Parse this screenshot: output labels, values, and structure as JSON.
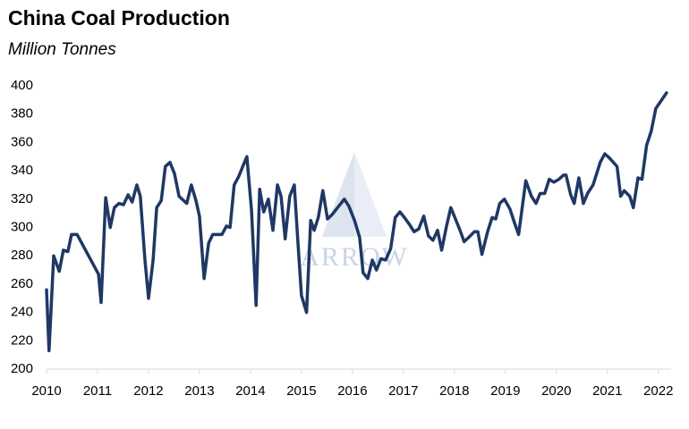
{
  "chart_data": {
    "type": "line",
    "title": "China Coal Production",
    "subtitle": "Million Tonnes",
    "watermark": "ARROW",
    "series": [
      {
        "name": "China Coal Production",
        "color": "#1f3864",
        "x": [
          2010.0,
          2010.05,
          2010.14,
          2010.25,
          2010.33,
          2010.42,
          2010.49,
          2010.6,
          2011.02,
          2011.07,
          2011.16,
          2011.25,
          2011.33,
          2011.42,
          2011.51,
          2011.6,
          2011.68,
          2011.77,
          2011.84,
          2011.93,
          2012.0,
          2012.09,
          2012.16,
          2012.25,
          2012.33,
          2012.42,
          2012.51,
          2012.6,
          2012.75,
          2012.84,
          2012.93,
          2013.0,
          2013.09,
          2013.18,
          2013.26,
          2013.44,
          2013.53,
          2013.6,
          2013.68,
          2013.77,
          2013.86,
          2013.93,
          2014.02,
          2014.11,
          2014.18,
          2014.26,
          2014.35,
          2014.44,
          2014.53,
          2014.6,
          2014.68,
          2014.77,
          2014.86,
          2014.93,
          2015.0,
          2015.1,
          2015.18,
          2015.25,
          2015.33,
          2015.42,
          2015.51,
          2015.6,
          2015.84,
          2015.93,
          2016.04,
          2016.14,
          2016.21,
          2016.3,
          2016.39,
          2016.47,
          2016.56,
          2016.65,
          2016.75,
          2016.84,
          2016.93,
          2017.02,
          2017.12,
          2017.21,
          2017.3,
          2017.4,
          2017.49,
          2017.58,
          2017.67,
          2017.75,
          2017.84,
          2017.93,
          2018.02,
          2018.11,
          2018.19,
          2018.28,
          2018.39,
          2018.46,
          2018.54,
          2018.65,
          2018.74,
          2018.81,
          2018.89,
          2018.98,
          2019.09,
          2019.18,
          2019.26,
          2019.4,
          2019.51,
          2019.6,
          2019.68,
          2019.77,
          2019.86,
          2019.95,
          2020.05,
          2020.14,
          2020.19,
          2020.28,
          2020.35,
          2020.44,
          2020.53,
          2020.61,
          2020.72,
          2020.79,
          2020.86,
          2020.95,
          2021.04,
          2021.19,
          2021.26,
          2021.33,
          2021.44,
          2021.51,
          2021.6,
          2021.68,
          2021.77,
          2021.86,
          2021.95,
          2022.16
        ],
        "values": [
          256,
          213,
          280,
          269,
          284,
          283,
          295,
          295,
          267,
          247,
          321,
          300,
          314,
          317,
          316,
          323,
          318,
          330,
          322,
          277,
          250,
          277,
          314,
          319,
          343,
          346,
          338,
          322,
          317,
          330,
          319,
          308,
          264,
          289,
          295,
          295,
          301,
          300,
          330,
          336,
          344,
          350,
          312,
          245,
          327,
          311,
          320,
          298,
          330,
          322,
          292,
          322,
          330,
          290,
          252,
          240,
          305,
          298,
          307,
          326,
          306,
          309,
          320,
          315,
          305,
          293,
          268,
          264,
          277,
          270,
          278,
          277,
          285,
          307,
          311,
          307,
          302,
          297,
          299,
          308,
          294,
          291,
          298,
          284,
          300,
          314,
          306,
          298,
          290,
          293,
          297,
          297,
          281,
          297,
          307,
          306,
          317,
          320,
          313,
          303,
          295,
          333,
          322,
          317,
          324,
          324,
          334,
          332,
          334,
          337,
          337,
          323,
          317,
          335,
          317,
          324,
          330,
          338,
          346,
          352,
          349,
          343,
          322,
          326,
          322,
          314,
          335,
          334,
          358,
          368,
          384,
          395
        ]
      }
    ],
    "xlim": [
      2010,
      2022.25
    ],
    "xticks": [
      2010,
      2011,
      2012,
      2013,
      2014,
      2015,
      2016,
      2017,
      2018,
      2019,
      2020,
      2021,
      2022
    ],
    "ylim": [
      200,
      400
    ],
    "yticks": [
      200,
      220,
      240,
      260,
      280,
      300,
      320,
      340,
      360,
      380,
      400
    ],
    "grid": false
  }
}
